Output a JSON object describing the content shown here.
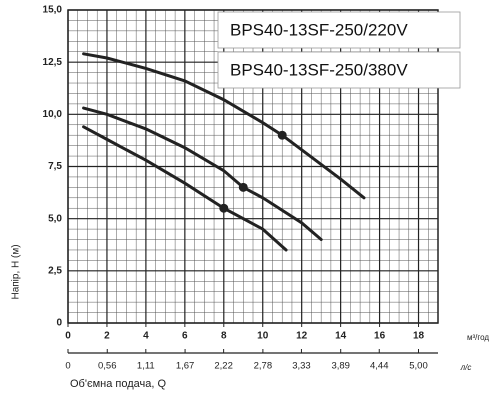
{
  "chart_data": {
    "type": "line",
    "ylabel": "Напір, H (м)",
    "xlabel": "Об'ємна подача, Q",
    "x_unit": "м³/год",
    "x2_unit": "л/с",
    "legend": [
      "BPS40-13SF-250/220V",
      "BPS40-13SF-250/380V"
    ],
    "xlim": [
      0,
      19
    ],
    "xticks": [
      0,
      2,
      4,
      6,
      8,
      10,
      12,
      14,
      16,
      18
    ],
    "x2lim": [
      0,
      5.278
    ],
    "x2ticks": [
      0,
      {
        "value": 0.56,
        "label": "0,56"
      },
      {
        "value": 1.11,
        "label": "1,11"
      },
      {
        "value": 1.67,
        "label": "1,67"
      },
      {
        "value": 2.22,
        "label": "2,22"
      },
      {
        "value": 2.78,
        "label": "2,78"
      },
      {
        "value": 3.33,
        "label": "3,33"
      },
      {
        "value": 3.89,
        "label": "3,89"
      },
      {
        "value": 4.44,
        "label": "4,44"
      },
      {
        "value": 5.0,
        "label": "5,00"
      }
    ],
    "ylim": [
      0,
      15
    ],
    "yticks": [
      0,
      {
        "value": 2.5,
        "label": "2,5"
      },
      {
        "value": 5.0,
        "label": "5,0"
      },
      {
        "value": 7.5,
        "label": "7,5"
      },
      {
        "value": 10.0,
        "label": "10,0"
      },
      {
        "value": 12.5,
        "label": "12,5"
      },
      {
        "value": 15.0,
        "label": "15,0"
      }
    ],
    "grid": true,
    "series": [
      {
        "color": "#222222",
        "x": [
          0.8,
          2,
          4,
          6,
          8,
          10,
          11,
          12,
          14,
          15.2
        ],
        "values": [
          12.9,
          12.7,
          12.2,
          11.6,
          10.7,
          9.6,
          9.0,
          8.3,
          6.9,
          6.0
        ],
        "point": {
          "x": 11,
          "y": 9.0
        }
      },
      {
        "color": "#222222",
        "x": [
          0.8,
          2,
          4,
          6,
          8,
          9,
          10,
          12,
          13
        ],
        "values": [
          10.3,
          10.0,
          9.3,
          8.4,
          7.3,
          6.5,
          6.0,
          4.8,
          4.0
        ],
        "point": {
          "x": 9,
          "y": 6.5
        }
      },
      {
        "color": "#222222",
        "x": [
          0.8,
          2,
          4,
          6,
          8,
          10,
          11.2
        ],
        "values": [
          9.4,
          8.8,
          7.8,
          6.7,
          5.5,
          4.5,
          3.5
        ],
        "point": {
          "x": 8,
          "y": 5.5
        }
      }
    ]
  }
}
